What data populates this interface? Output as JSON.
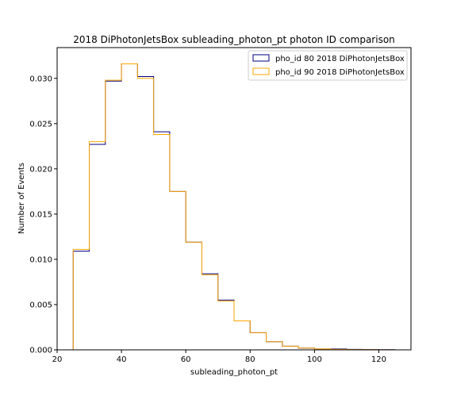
{
  "chart_data": {
    "type": "histogram-step",
    "title": "2018 DiPhotonJetsBox subleading_photon_pt photon ID comparison",
    "xlabel": "subleading_photon_pt",
    "ylabel": "Number of Events",
    "xlim": [
      20,
      130
    ],
    "ylim": [
      0,
      0.0334
    ],
    "xticks": [
      20,
      40,
      60,
      80,
      100,
      120
    ],
    "yticks": [
      0.0,
      0.005,
      0.01,
      0.015,
      0.02,
      0.025,
      0.03
    ],
    "ytick_labels": [
      "0.000",
      "0.005",
      "0.010",
      "0.015",
      "0.020",
      "0.025",
      "0.030"
    ],
    "grid": false,
    "legend_position": "upper right",
    "bin_edges": [
      25,
      30,
      35,
      40,
      45,
      50,
      55,
      60,
      65,
      70,
      75,
      80,
      85,
      90,
      95,
      100,
      105,
      110,
      115,
      120,
      125
    ],
    "series": [
      {
        "name": "pho_id 80 2018 DiPhotonJetsBox",
        "color": "#000080",
        "values": [
          0.0109,
          0.0227,
          0.0297,
          0.0316,
          0.0302,
          0.0241,
          0.0175,
          0.0119,
          0.0084,
          0.0055,
          0.0032,
          0.0019,
          0.0009,
          0.0004,
          0.0002,
          0.0001,
          0.0001,
          5e-05,
          3e-05,
          2e-05
        ]
      },
      {
        "name": "pho_id 90 2018 DiPhotonJetsBox",
        "color": "#FFA500",
        "values": [
          0.0111,
          0.023,
          0.0298,
          0.0316,
          0.03,
          0.0238,
          0.0175,
          0.0119,
          0.0083,
          0.0054,
          0.0032,
          0.0019,
          0.0009,
          0.0004,
          0.0002,
          0.0001,
          5e-05,
          3e-05,
          2e-05,
          1e-05
        ]
      }
    ]
  }
}
